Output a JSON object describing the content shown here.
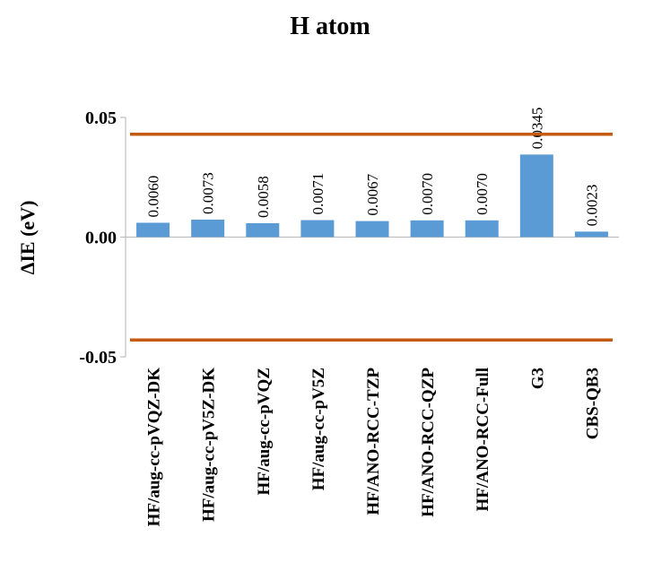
{
  "chart_data": {
    "type": "bar",
    "title": "H atom",
    "xlabel": "",
    "ylabel": "ΔIE (eV)",
    "ylim": [
      -0.05,
      0.05
    ],
    "yticks": [
      "-0.05",
      "0.00",
      "0.05"
    ],
    "ytick_values": [
      -0.05,
      0.0,
      0.05
    ],
    "categories": [
      "HF/aug-cc-pVQZ-DK",
      "HF/aug-cc-pV5Z-DK",
      "HF/aug-cc-pVQZ",
      "HF/aug-cc-pV5Z",
      "HF/ANO-RCC-TZP",
      "HF/ANO-RCC-QZP",
      "HF/ANO-RCC-Full",
      "G3",
      "CBS-QB3"
    ],
    "values": [
      0.006,
      0.0073,
      0.0058,
      0.0071,
      0.0067,
      0.007,
      0.007,
      0.0345,
      0.0023
    ],
    "data_labels": [
      "0.0060",
      "0.0073",
      "0.0058",
      "0.0071",
      "0.0067",
      "0.0070",
      "0.0070",
      "0.0345",
      "0.0023"
    ],
    "reference_lines": [
      0.043,
      -0.043
    ],
    "grid": false,
    "legend": "none",
    "colors": {
      "bar": "#5b9bd5",
      "reference_line": "#c55a11",
      "axis": "#bfbfbf"
    }
  }
}
